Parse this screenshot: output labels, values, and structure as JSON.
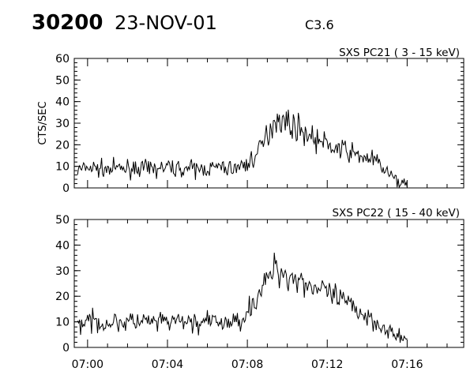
{
  "header": {
    "event_id": "30200",
    "date": "23-NOV-01",
    "goes_class": "C3.6"
  },
  "chart_data": [
    {
      "type": "line",
      "title": "SXS PC21  (  3 - 15 keV)",
      "xlabel": "",
      "ylabel": "CTS/SEC",
      "ylim": [
        0,
        60
      ],
      "yticks": [
        0,
        10,
        20,
        30,
        40,
        50,
        60
      ],
      "xlim": [
        "06:59:20",
        "07:18:50"
      ],
      "xticks": [
        "07:00",
        "07:04",
        "07:08",
        "07:12",
        "07:16"
      ],
      "grid": false,
      "series": [
        {
          "x": [
            "06:59:30",
            "07:00:00",
            "07:00:30",
            "07:01:00",
            "07:01:30",
            "07:02:00",
            "07:02:30",
            "07:03:00",
            "07:03:30",
            "07:04:00",
            "07:04:30",
            "07:05:00",
            "07:05:30",
            "07:06:00",
            "07:06:30",
            "07:07:00",
            "07:07:30",
            "07:08:00",
            "07:08:30",
            "07:09:00",
            "07:09:15",
            "07:09:30",
            "07:10:00",
            "07:10:30",
            "07:11:00",
            "07:11:30",
            "07:12:00",
            "07:12:30",
            "07:13:00",
            "07:13:30",
            "07:14:00",
            "07:14:30",
            "07:15:00",
            "07:15:30",
            "07:16:00"
          ],
          "values": [
            8,
            9.5,
            9,
            8.5,
            9,
            9,
            9.5,
            8.5,
            9,
            9.5,
            9,
            9,
            8.5,
            9,
            9.5,
            9,
            9.5,
            11,
            16,
            24,
            30,
            33,
            30,
            28,
            25,
            22,
            20,
            18,
            17,
            15,
            14,
            12,
            7,
            3,
            2
          ]
        }
      ]
    },
    {
      "type": "line",
      "title": "SXS PC22  ( 15 - 40 keV)",
      "xlabel": "",
      "ylabel": "",
      "ylim": [
        0,
        50
      ],
      "yticks": [
        0,
        10,
        20,
        30,
        40,
        50
      ],
      "xlim": [
        "06:59:20",
        "07:18:50"
      ],
      "xticks": [
        "07:00",
        "07:04",
        "07:08",
        "07:12",
        "07:16"
      ],
      "grid": false,
      "series": [
        {
          "x": [
            "06:59:30",
            "07:00:00",
            "07:00:30",
            "07:01:00",
            "07:01:30",
            "07:02:00",
            "07:02:30",
            "07:03:00",
            "07:03:30",
            "07:04:00",
            "07:04:30",
            "07:05:00",
            "07:05:30",
            "07:06:00",
            "07:06:30",
            "07:07:00",
            "07:07:30",
            "07:08:00",
            "07:08:30",
            "07:09:00",
            "07:09:15",
            "07:09:30",
            "07:10:00",
            "07:10:30",
            "07:11:00",
            "07:11:30",
            "07:12:00",
            "07:12:30",
            "07:13:00",
            "07:13:30",
            "07:14:00",
            "07:14:30",
            "07:15:00",
            "07:15:30",
            "07:16:00"
          ],
          "values": [
            9,
            10,
            10,
            9.5,
            10,
            10,
            10,
            10,
            9.5,
            10,
            10,
            10,
            9.5,
            10,
            10,
            9.5,
            10,
            14,
            20,
            26,
            30,
            31,
            28,
            27,
            25,
            23,
            21,
            19,
            17,
            15,
            12,
            10,
            7,
            4,
            3
          ]
        }
      ]
    }
  ]
}
